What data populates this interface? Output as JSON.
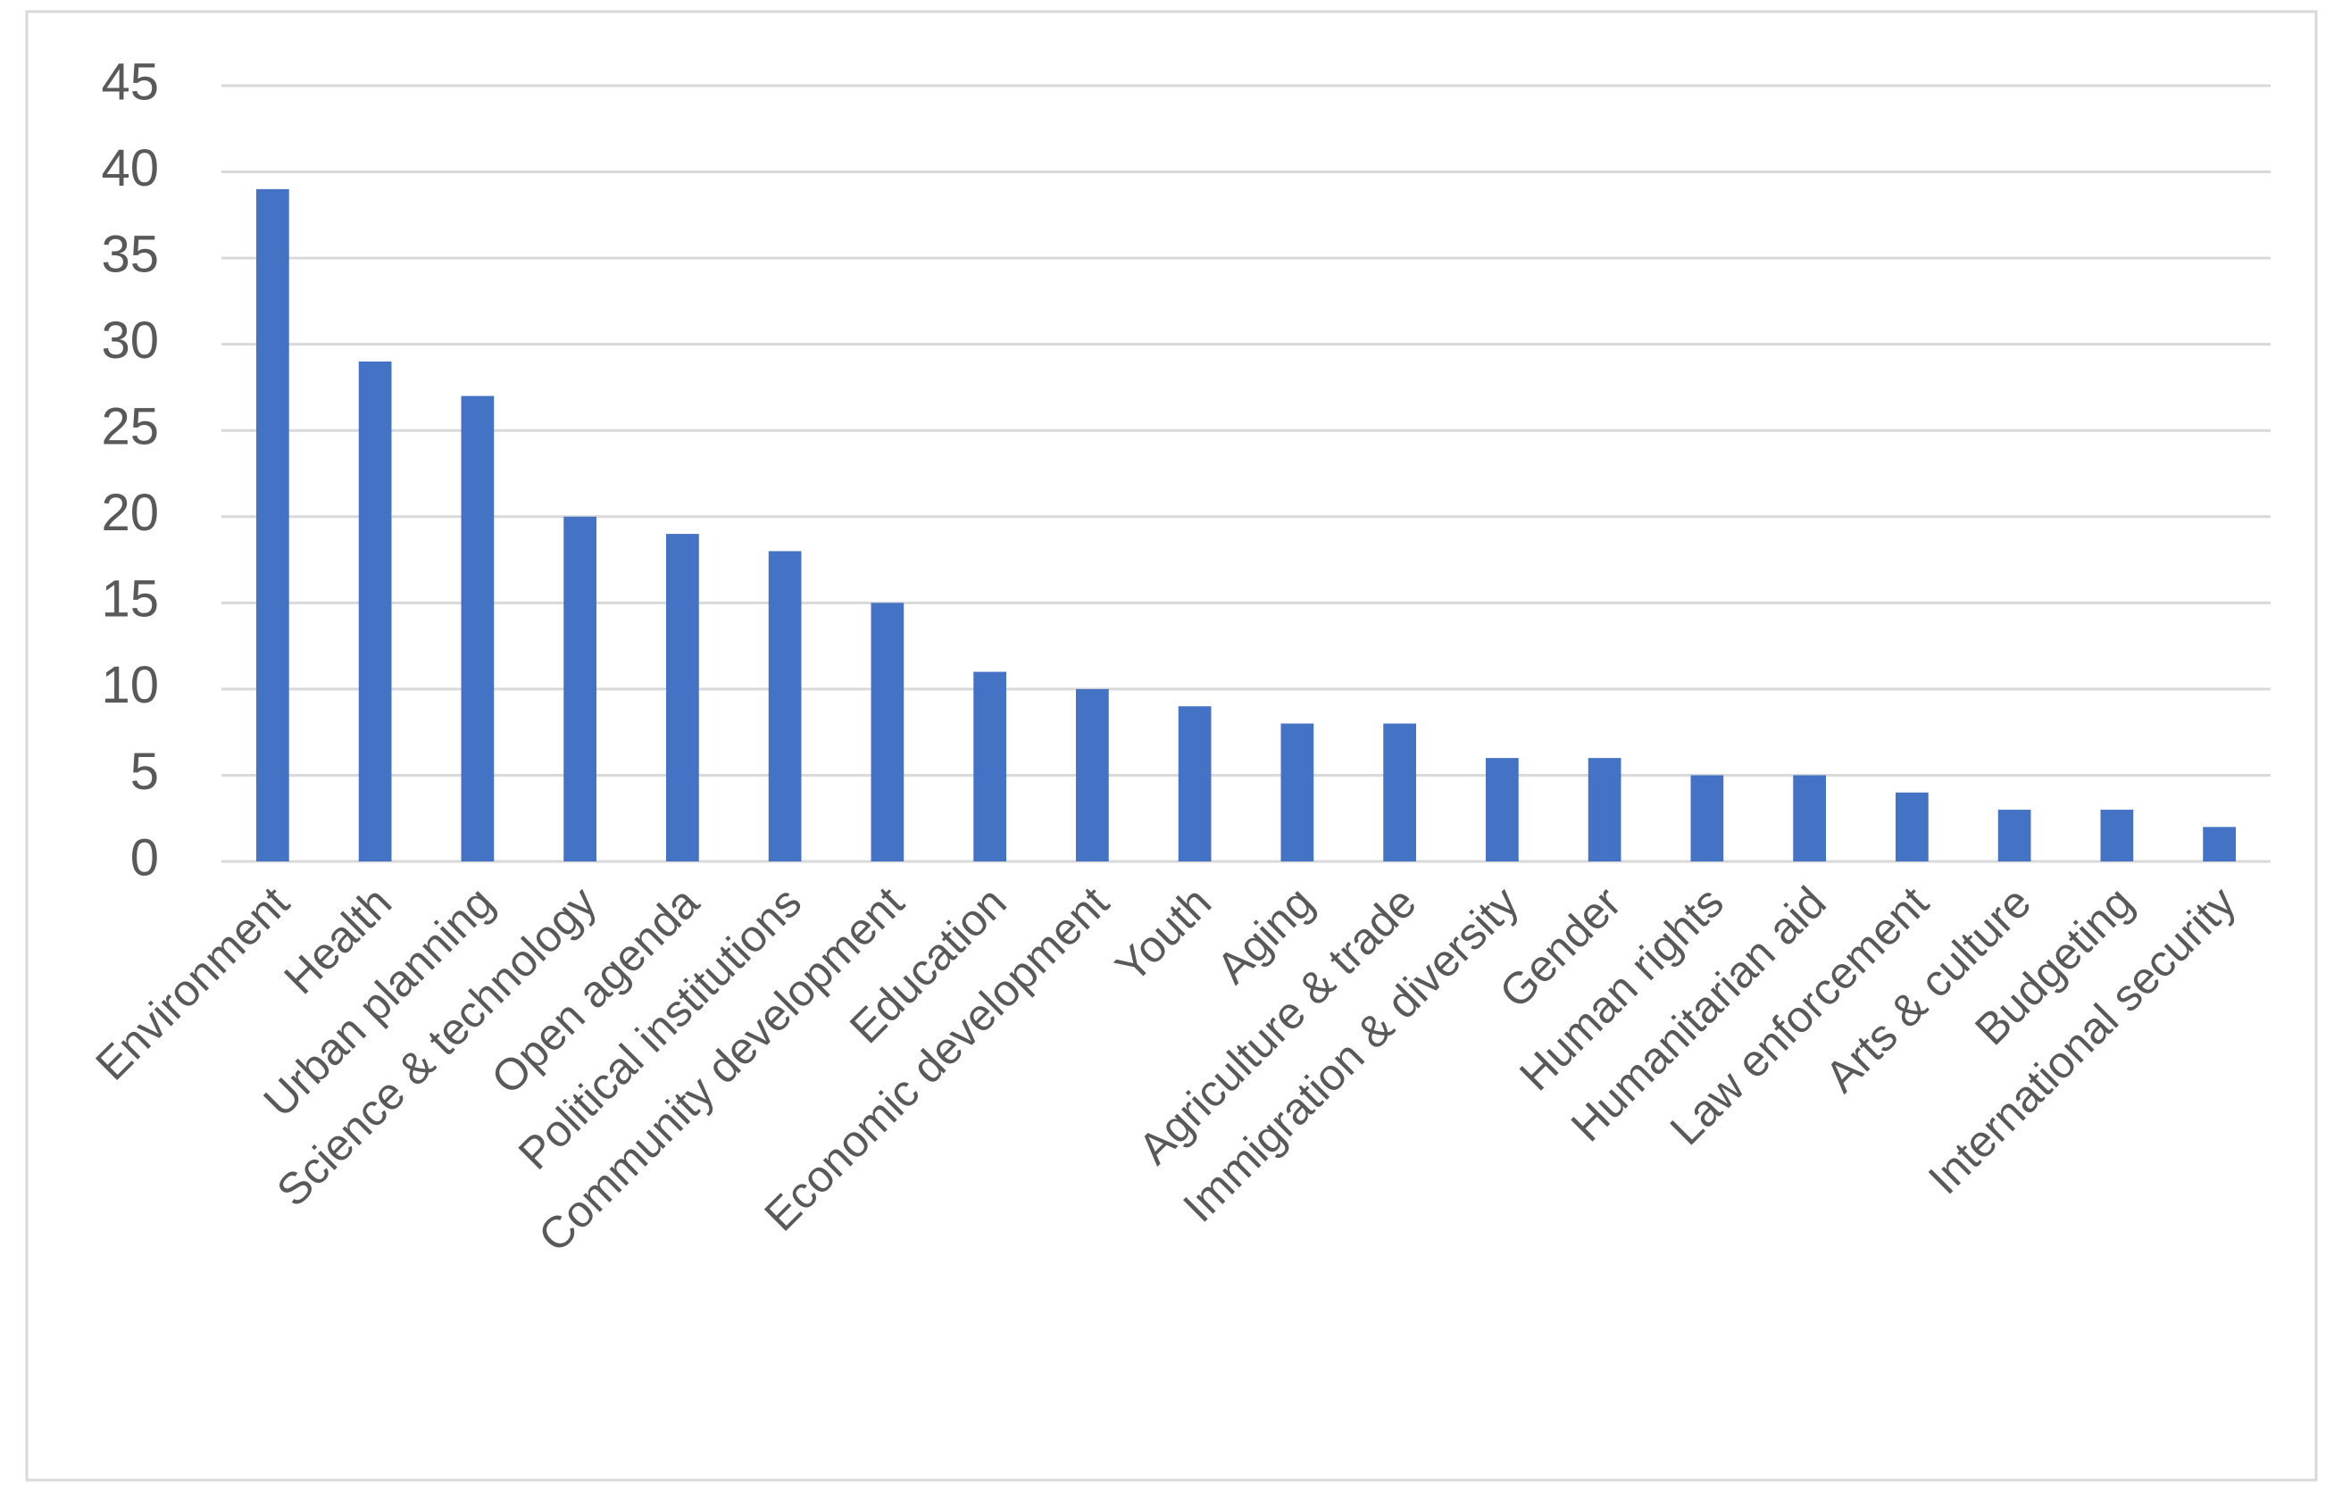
{
  "chart_data": {
    "type": "bar",
    "categories": [
      "Environment",
      "Health",
      "Urban planning",
      "Science & technology",
      "Open agenda",
      "Political institutions",
      "Community development",
      "Education",
      "Economic development",
      "Youth",
      "Aging",
      "Agriculture & trade",
      "Immigration & diversity",
      "Gender",
      "Human rights",
      "Humanitarian aid",
      "Law enforcement",
      "Arts & culture",
      "Budgeting",
      "International security"
    ],
    "values": [
      39,
      29,
      27,
      20,
      19,
      18,
      15,
      11,
      10,
      9,
      8,
      8,
      6,
      6,
      5,
      5,
      4,
      3,
      3,
      2
    ],
    "color": "#4472c4",
    "ylim": [
      0,
      45
    ],
    "yticks": [
      0,
      5,
      10,
      15,
      20,
      25,
      30,
      35,
      40,
      45
    ],
    "grid": true
  }
}
